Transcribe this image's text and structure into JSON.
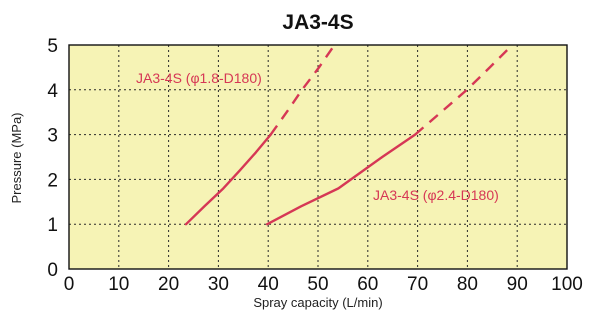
{
  "chart_data": {
    "type": "line",
    "title": "JA3-4S",
    "xlabel": "Spray capacity (L/min)",
    "ylabel": "Pressure (MPa)",
    "xlim": [
      0,
      100
    ],
    "ylim": [
      0,
      5
    ],
    "x_ticks": [
      "0",
      "10",
      "20",
      "30",
      "40",
      "50",
      "60",
      "70",
      "80",
      "90",
      "100"
    ],
    "y_ticks": [
      "0",
      "1",
      "2",
      "3",
      "4",
      "5"
    ],
    "grid": true,
    "plot_background": "#f6f3b5",
    "series_color": "#d63755",
    "series": [
      {
        "name": "JA3-4S (φ1.8-D180)",
        "solid": [
          {
            "x": 23.5,
            "y": 1.0
          },
          {
            "x": 27.2,
            "y": 1.4
          },
          {
            "x": 31.0,
            "y": 1.8
          },
          {
            "x": 34.3,
            "y": 2.2
          },
          {
            "x": 37.5,
            "y": 2.6
          },
          {
            "x": 40.5,
            "y": 3.0
          }
        ],
        "dashed": [
          {
            "x": 40.5,
            "y": 3.0
          },
          {
            "x": 43.7,
            "y": 3.5
          },
          {
            "x": 46.8,
            "y": 4.0
          },
          {
            "x": 50.2,
            "y": 4.5
          },
          {
            "x": 53.3,
            "y": 5.0
          }
        ]
      },
      {
        "name": "JA3-4S (φ2.4-D180)",
        "solid": [
          {
            "x": 39.8,
            "y": 1.0
          },
          {
            "x": 46.6,
            "y": 1.4
          },
          {
            "x": 54.1,
            "y": 1.8
          },
          {
            "x": 62.9,
            "y": 2.5
          },
          {
            "x": 69.5,
            "y": 3.0
          }
        ],
        "dashed": [
          {
            "x": 69.5,
            "y": 3.0
          },
          {
            "x": 74.7,
            "y": 3.5
          },
          {
            "x": 79.9,
            "y": 4.0
          },
          {
            "x": 84.5,
            "y": 4.5
          },
          {
            "x": 89.0,
            "y": 5.0
          }
        ]
      }
    ]
  }
}
